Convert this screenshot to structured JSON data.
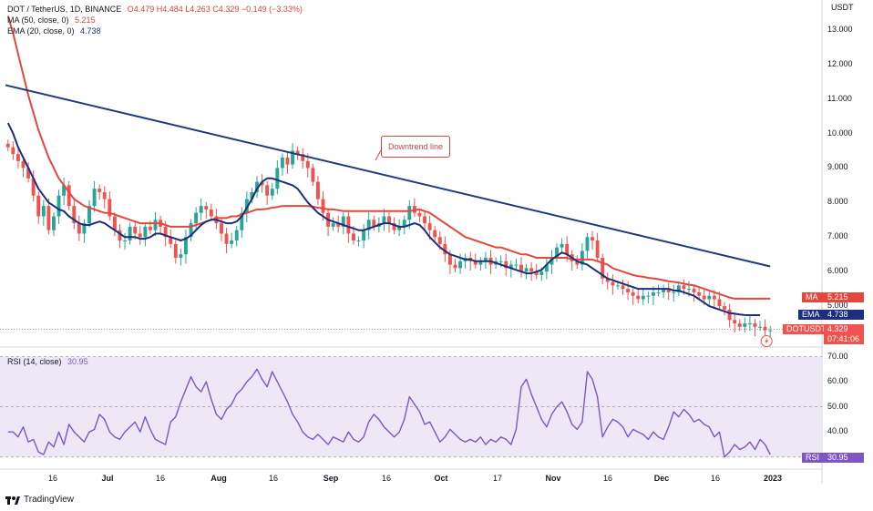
{
  "legend": {
    "symbol": "DOT / TetherUS, 1D, BINANCE",
    "ohlc": "O4.479  H4.484  L4.263  C4.329  −0.149 (−3.33%)",
    "ma_label": "MA (50, close, 0)",
    "ma_value": "5.215",
    "ema_label": "EMA (20, close, 0)",
    "ema_value": "4.738",
    "rsi_label": "RSI (14, close)",
    "rsi_value": "30.95"
  },
  "price_axis": {
    "unit": "USDT",
    "ticks": [
      "13.000",
      "12.000",
      "11.000",
      "10.000",
      "9.000",
      "8.000",
      "7.000",
      "6.000",
      "5.000"
    ]
  },
  "rsi_axis": {
    "ticks": [
      "70.00",
      "60.00",
      "50.00",
      "40.00"
    ]
  },
  "time_axis": [
    "16",
    "Jul",
    "16",
    "Aug",
    "16",
    "Sep",
    "16",
    "Oct",
    "17",
    "Nov",
    "16",
    "Dec",
    "16",
    "2023"
  ],
  "tags": {
    "ma_name": "MA",
    "ma_val": "5.215",
    "ema_name": "EMA",
    "ema_val": "4.738",
    "pair_name": "DOTUSDT",
    "pair_val": "4.329",
    "countdown": "07:41:06",
    "rsi_name": "RSI",
    "rsi_val": "30.95"
  },
  "annotation": "Downtrend line",
  "brand": "TradingView",
  "colors": {
    "up": "#26a69a",
    "down": "#ef5350",
    "ma": "#e5483b",
    "ema": "#1b2f7a",
    "trend": "#1f3a7a",
    "rsi": "#7e57c2",
    "rsi_band": "#ede7f6"
  },
  "chart_data": {
    "type": "candlestick",
    "title": "DOT / TetherUS, 1D, BINANCE",
    "ylabel": "USDT",
    "ylim": [
      4.0,
      13.6
    ],
    "rsi_ylim": [
      27,
      72
    ],
    "x_ticks": [
      "16",
      "Jul",
      "16",
      "Aug",
      "16",
      "Sep",
      "16",
      "Oct",
      "17",
      "Nov",
      "16",
      "Dec",
      "16",
      "2023"
    ],
    "close": [
      9.6,
      9.4,
      9.2,
      9.0,
      8.7,
      8.2,
      7.6,
      7.9,
      7.2,
      7.6,
      8.2,
      8.5,
      7.9,
      7.4,
      7.1,
      7.4,
      7.9,
      8.4,
      8.3,
      8.1,
      7.6,
      7.2,
      6.9,
      6.9,
      7.3,
      7.1,
      7.0,
      7.3,
      7.2,
      7.5,
      7.3,
      7.0,
      6.8,
      6.4,
      6.5,
      7.0,
      7.4,
      7.7,
      7.9,
      7.8,
      7.6,
      7.4,
      7.1,
      6.8,
      6.9,
      7.2,
      7.7,
      8.1,
      8.3,
      8.6,
      8.5,
      8.2,
      8.4,
      9.0,
      9.3,
      9.1,
      9.5,
      9.4,
      9.2,
      9.0,
      8.6,
      8.1,
      7.7,
      7.3,
      7.4,
      7.3,
      7.6,
      7.1,
      6.9,
      6.9,
      7.2,
      7.5,
      7.3,
      7.4,
      7.6,
      7.4,
      7.2,
      7.3,
      7.5,
      7.9,
      7.7,
      7.6,
      7.4,
      7.2,
      7.0,
      6.8,
      6.5,
      6.2,
      6.1,
      6.3,
      6.4,
      6.3,
      6.2,
      6.3,
      6.4,
      6.2,
      6.3,
      6.3,
      6.1,
      6.2,
      6.2,
      6.0,
      6.1,
      6.0,
      5.9,
      6.0,
      6.2,
      6.4,
      6.7,
      6.8,
      6.5,
      6.3,
      6.2,
      6.6,
      7.0,
      6.9,
      6.4,
      5.8,
      5.7,
      5.6,
      5.6,
      5.5,
      5.4,
      5.3,
      5.2,
      5.3,
      5.3,
      5.4,
      5.4,
      5.5,
      5.4,
      5.4,
      5.6,
      5.5,
      5.5,
      5.4,
      5.3,
      5.2,
      5.3,
      5.2,
      5.0,
      4.9,
      4.6,
      4.5,
      4.4,
      4.5,
      4.5,
      4.4,
      4.4,
      4.3,
      4.3
    ],
    "ma50": [
      13.4,
      12.9,
      12.3,
      11.7,
      11.1,
      10.6,
      10.1,
      9.7,
      9.3,
      9.0,
      8.7,
      8.5,
      8.3,
      8.1,
      8.0,
      7.9,
      7.85,
      7.8,
      7.75,
      7.7,
      7.7,
      7.65,
      7.6,
      7.55,
      7.5,
      7.45,
      7.4,
      7.4,
      7.4,
      7.4,
      7.4,
      7.35,
      7.3,
      7.3,
      7.3,
      7.3,
      7.3,
      7.35,
      7.4,
      7.45,
      7.5,
      7.55,
      7.55,
      7.55,
      7.6,
      7.6,
      7.65,
      7.7,
      7.75,
      7.8,
      7.8,
      7.82,
      7.85,
      7.87,
      7.9,
      7.9,
      7.9,
      7.9,
      7.9,
      7.9,
      7.88,
      7.85,
      7.83,
      7.8,
      7.8,
      7.78,
      7.75,
      7.75,
      7.75,
      7.75,
      7.75,
      7.75,
      7.75,
      7.75,
      7.75,
      7.75,
      7.75,
      7.75,
      7.75,
      7.75,
      7.78,
      7.8,
      7.75,
      7.7,
      7.6,
      7.5,
      7.4,
      7.3,
      7.2,
      7.1,
      7.0,
      6.95,
      6.9,
      6.85,
      6.8,
      6.75,
      6.7,
      6.7,
      6.65,
      6.6,
      6.55,
      6.5,
      6.5,
      6.45,
      6.4,
      6.4,
      6.4,
      6.4,
      6.4,
      6.4,
      6.4,
      6.35,
      6.35,
      6.35,
      6.35,
      6.35,
      6.3,
      6.25,
      6.2,
      6.1,
      6.05,
      6.0,
      5.95,
      5.9,
      5.87,
      5.85,
      5.82,
      5.8,
      5.78,
      5.75,
      5.72,
      5.7,
      5.68,
      5.65,
      5.62,
      5.6,
      5.55,
      5.5,
      5.45,
      5.4,
      5.35,
      5.3,
      5.25,
      5.215,
      5.215,
      5.215,
      5.215,
      5.215,
      5.215,
      5.215,
      5.215
    ],
    "ema20": [
      10.3,
      10.0,
      9.6,
      9.3,
      9.0,
      8.7,
      8.4,
      8.2,
      8.0,
      7.9,
      7.8,
      7.75,
      7.6,
      7.5,
      7.4,
      7.35,
      7.35,
      7.4,
      7.45,
      7.4,
      7.3,
      7.2,
      7.1,
      7.0,
      7.0,
      7.0,
      6.95,
      6.95,
      7.0,
      7.1,
      7.1,
      7.05,
      7.0,
      6.95,
      6.9,
      6.95,
      7.05,
      7.2,
      7.35,
      7.45,
      7.5,
      7.5,
      7.45,
      7.4,
      7.4,
      7.45,
      7.6,
      7.85,
      8.1,
      8.4,
      8.6,
      8.7,
      8.7,
      8.65,
      8.6,
      8.55,
      8.5,
      8.4,
      8.2,
      8.0,
      7.85,
      7.7,
      7.6,
      7.5,
      7.45,
      7.4,
      7.35,
      7.3,
      7.25,
      7.2,
      7.2,
      7.25,
      7.3,
      7.35,
      7.4,
      7.4,
      7.35,
      7.3,
      7.3,
      7.35,
      7.4,
      7.35,
      7.2,
      7.0,
      6.85,
      6.7,
      6.6,
      6.5,
      6.45,
      6.4,
      6.35,
      6.35,
      6.3,
      6.3,
      6.3,
      6.3,
      6.25,
      6.2,
      6.15,
      6.1,
      6.05,
      6.0,
      5.95,
      5.95,
      6.0,
      6.05,
      6.2,
      6.35,
      6.45,
      6.55,
      6.5,
      6.4,
      6.3,
      6.25,
      6.2,
      6.1,
      6.0,
      5.9,
      5.8,
      5.75,
      5.7,
      5.65,
      5.6,
      5.55,
      5.5,
      5.5,
      5.5,
      5.5,
      5.5,
      5.5,
      5.5,
      5.45,
      5.45,
      5.4,
      5.35,
      5.3,
      5.2,
      5.1,
      5.0,
      4.95,
      4.9,
      4.85,
      4.8,
      4.78,
      4.76,
      4.74,
      4.738,
      4.738,
      4.738
    ],
    "trendline": [
      [
        0,
        11.4
      ],
      [
        150,
        6.15
      ]
    ],
    "rsi": [
      40,
      40,
      38,
      42,
      36,
      37,
      32,
      31,
      36,
      34,
      40,
      35,
      43,
      40,
      38,
      36,
      40,
      41,
      47,
      45,
      40,
      38,
      37,
      40,
      42,
      44,
      40,
      46,
      41,
      37,
      36,
      35,
      44,
      46,
      52,
      57,
      62,
      58,
      56,
      60,
      53,
      47,
      45,
      49,
      51,
      55,
      57,
      60,
      62,
      65,
      61,
      58,
      64,
      60,
      56,
      52,
      47,
      44,
      40,
      38,
      37,
      39,
      37,
      35,
      38,
      37,
      36,
      40,
      37,
      36,
      38,
      44,
      47,
      45,
      42,
      40,
      38,
      40,
      45,
      54,
      51,
      48,
      43,
      44,
      40,
      36,
      38,
      41,
      39,
      37,
      36,
      37,
      36,
      38,
      35,
      37,
      36,
      38,
      37,
      35,
      41,
      58,
      61,
      55,
      50,
      45,
      42,
      47,
      50,
      52,
      48,
      43,
      41,
      44,
      64,
      61,
      54,
      38,
      42,
      45,
      44,
      42,
      38,
      41,
      40,
      39,
      37,
      40,
      38,
      37,
      42,
      48,
      46,
      49,
      47,
      44,
      45,
      43,
      42,
      38,
      40,
      30,
      32,
      35,
      33,
      34,
      36,
      33,
      37,
      35,
      31
    ],
    "last_price": 4.329
  }
}
